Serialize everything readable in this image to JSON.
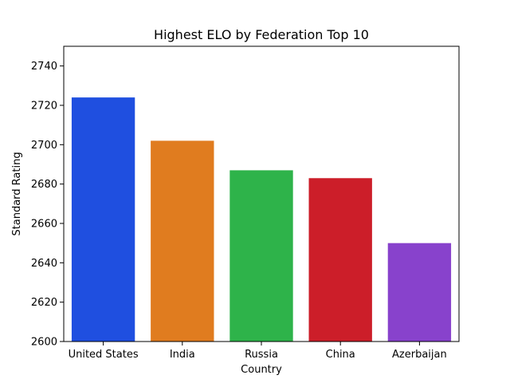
{
  "chart_data": {
    "type": "bar",
    "title": "Highest ELO by Federation Top 10",
    "xlabel": "Country",
    "ylabel": "Standard Rating",
    "categories": [
      "United States",
      "India",
      "Russia",
      "China",
      "Azerbaijan"
    ],
    "values": [
      2724,
      2702,
      2687,
      2683,
      2650
    ],
    "colors": [
      "#1f4fe0",
      "#e07c1f",
      "#2eb34a",
      "#cc1e29",
      "#8842cc"
    ],
    "ylim": [
      2600,
      2750
    ],
    "yticks": [
      "2600",
      "2620",
      "2640",
      "2660",
      "2680",
      "2700",
      "2720",
      "2740"
    ],
    "grid": false,
    "legend": "none"
  }
}
